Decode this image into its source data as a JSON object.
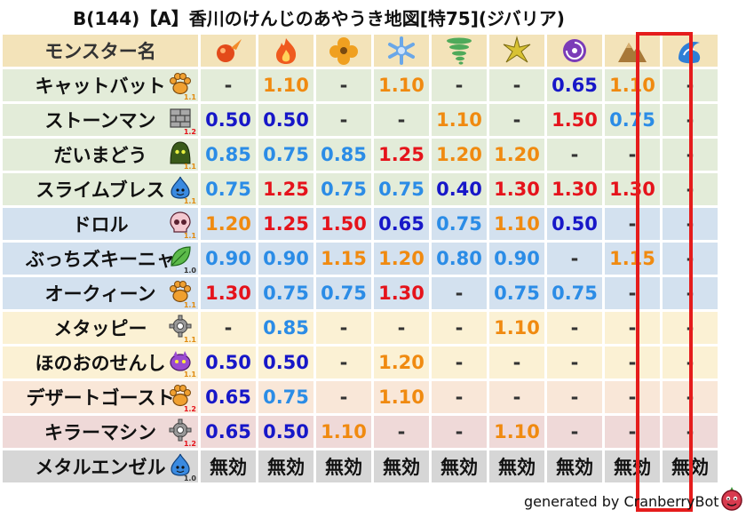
{
  "title": "B(144)【A】香川のけんじのあやうき地図[特75](ジバリア)",
  "header": {
    "name_col": "モンスター名",
    "elements": [
      {
        "icon": "fire-ball-icon",
        "color": "#e34a1a"
      },
      {
        "icon": "flame-icon",
        "color": "#ef5a1e"
      },
      {
        "icon": "wind-clover-icon",
        "color": "#f0a020"
      },
      {
        "icon": "ice-snowflake-icon",
        "color": "#6aa7e8"
      },
      {
        "icon": "tornado-icon",
        "color": "#4faa5a"
      },
      {
        "icon": "lightning-burst-icon",
        "color": "#d8c233"
      },
      {
        "icon": "dark-vortex-icon",
        "color": "#7b3bb8"
      },
      {
        "icon": "earth-mountain-icon",
        "color": "#a87838"
      },
      {
        "icon": "water-wave-icon",
        "color": "#2f7fd6"
      }
    ]
  },
  "rows": [
    {
      "name": "キャットバット",
      "icon": "paw-icon",
      "size": "1.1",
      "bg": "green",
      "values": [
        "-",
        "1.10",
        "-",
        "1.10",
        "-",
        "-",
        "0.65",
        "1.10",
        "-"
      ],
      "colors": [
        "dash",
        "orange",
        "dash",
        "orange",
        "dash",
        "dash",
        "blue",
        "orange",
        "dash"
      ]
    },
    {
      "name": "ストーンマン",
      "icon": "brick-icon",
      "size": "1.2",
      "bg": "green",
      "values": [
        "0.50",
        "0.50",
        "-",
        "-",
        "1.10",
        "-",
        "1.50",
        "0.75",
        "-"
      ],
      "colors": [
        "blue",
        "blue",
        "dash",
        "dash",
        "orange",
        "dash",
        "red",
        "light",
        "dash"
      ]
    },
    {
      "name": "だいまどう",
      "icon": "hooded-mage-icon",
      "size": "1.1",
      "bg": "green",
      "values": [
        "0.85",
        "0.75",
        "0.85",
        "1.25",
        "1.20",
        "1.20",
        "-",
        "-",
        "-"
      ],
      "colors": [
        "light",
        "light",
        "light",
        "red",
        "orange",
        "orange",
        "dash",
        "dash",
        "dash"
      ]
    },
    {
      "name": "スライムブレス",
      "icon": "slime-icon",
      "size": "1.1",
      "bg": "green",
      "values": [
        "0.75",
        "1.25",
        "0.75",
        "0.75",
        "0.40",
        "1.30",
        "1.30",
        "1.30",
        "-"
      ],
      "colors": [
        "light",
        "red",
        "light",
        "light",
        "blue",
        "red",
        "red",
        "red",
        "dash"
      ]
    },
    {
      "name": "ドロル",
      "icon": "skull-icon",
      "size": "1.1",
      "bg": "blue",
      "values": [
        "1.20",
        "1.25",
        "1.50",
        "0.65",
        "0.75",
        "1.10",
        "0.50",
        "-",
        "-"
      ],
      "colors": [
        "orange",
        "red",
        "red",
        "blue",
        "light",
        "orange",
        "blue",
        "dash",
        "dash"
      ]
    },
    {
      "name": "ぶっちズキーニャ",
      "icon": "leaf-icon",
      "size": "1.0",
      "bg": "blue",
      "values": [
        "0.90",
        "0.90",
        "1.15",
        "1.20",
        "0.80",
        "0.90",
        "-",
        "1.15",
        "-"
      ],
      "colors": [
        "light",
        "light",
        "orange",
        "orange",
        "light",
        "light",
        "dash",
        "orange",
        "dash"
      ]
    },
    {
      "name": "オークィーン",
      "icon": "paw-icon",
      "size": "1.1",
      "bg": "blue",
      "values": [
        "1.30",
        "0.75",
        "0.75",
        "1.30",
        "-",
        "0.75",
        "0.75",
        "-",
        "-"
      ],
      "colors": [
        "red",
        "light",
        "light",
        "red",
        "dash",
        "light",
        "light",
        "dash",
        "dash"
      ]
    },
    {
      "name": "メタッピー",
      "icon": "gear-icon",
      "size": "1.1",
      "bg": "yellow",
      "values": [
        "-",
        "0.85",
        "-",
        "-",
        "-",
        "1.10",
        "-",
        "-",
        "-"
      ],
      "colors": [
        "dash",
        "light",
        "dash",
        "dash",
        "dash",
        "orange",
        "dash",
        "dash",
        "dash"
      ]
    },
    {
      "name": "ほのおのせんし",
      "icon": "purple-beast-icon",
      "size": "1.1",
      "bg": "yellow",
      "values": [
        "0.50",
        "0.50",
        "-",
        "1.20",
        "-",
        "-",
        "-",
        "-",
        "-"
      ],
      "colors": [
        "blue",
        "blue",
        "dash",
        "orange",
        "dash",
        "dash",
        "dash",
        "dash",
        "dash"
      ]
    },
    {
      "name": "デザートゴースト",
      "icon": "paw-icon",
      "size": "1.2",
      "bg": "peach",
      "values": [
        "0.65",
        "0.75",
        "-",
        "1.10",
        "-",
        "-",
        "-",
        "-",
        "-"
      ],
      "colors": [
        "blue",
        "light",
        "dash",
        "orange",
        "dash",
        "dash",
        "dash",
        "dash",
        "dash"
      ]
    },
    {
      "name": "キラーマシン",
      "icon": "gear-icon",
      "size": "1.2",
      "bg": "pink",
      "values": [
        "0.65",
        "0.50",
        "1.10",
        "-",
        "-",
        "1.10",
        "-",
        "-",
        "-"
      ],
      "colors": [
        "blue",
        "blue",
        "orange",
        "dash",
        "dash",
        "orange",
        "dash",
        "dash",
        "dash"
      ]
    },
    {
      "name": "メタルエンゼル",
      "icon": "slime-icon",
      "size": "1.0",
      "bg": "gray",
      "values": [
        "無効",
        "無効",
        "無効",
        "無効",
        "無効",
        "無効",
        "無効",
        "無効",
        "無効"
      ],
      "colors": [
        "muko",
        "muko",
        "muko",
        "muko",
        "muko",
        "muko",
        "muko",
        "muko",
        "muko"
      ]
    }
  ],
  "highlight_column": 7,
  "footer": "generated by CranberryBot"
}
